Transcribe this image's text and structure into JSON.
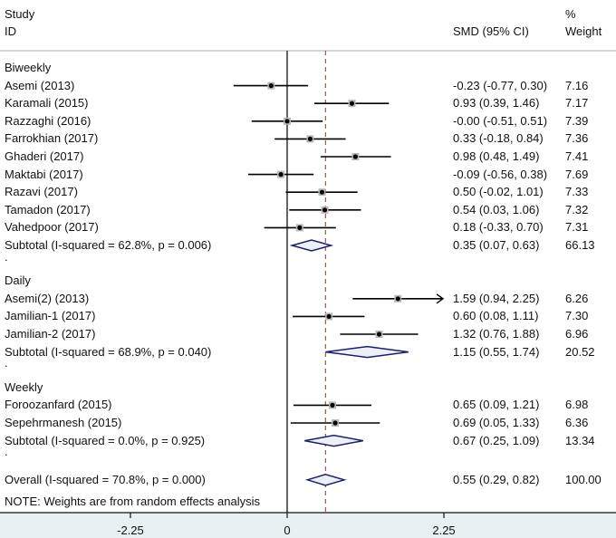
{
  "chart_data": {
    "type": "forest",
    "header": {
      "study": "Study",
      "id": "ID",
      "effect": "SMD (95% CI)",
      "weight_pct": "%",
      "weight": "Weight"
    },
    "null_line": 0,
    "overall_line": 0.55,
    "xlim": [
      -2.25,
      2.25
    ],
    "xticks": [
      {
        "value": -2.25,
        "label": "-2.25"
      },
      {
        "value": 0,
        "label": "0"
      },
      {
        "value": 2.25,
        "label": "2.25"
      }
    ],
    "rows": [
      {
        "kind": "group",
        "label": "Biweekly"
      },
      {
        "kind": "study",
        "label": "Asemi (2013)",
        "est": -0.23,
        "lo": -0.77,
        "hi": 0.3,
        "text": "-0.23 (-0.77, 0.30)",
        "weight": "7.16"
      },
      {
        "kind": "study",
        "label": "Karamali (2015)",
        "est": 0.93,
        "lo": 0.39,
        "hi": 1.46,
        "text": "0.93 (0.39, 1.46)",
        "weight": "7.17"
      },
      {
        "kind": "study",
        "label": "Razzaghi (2016)",
        "est": -0.0,
        "lo": -0.51,
        "hi": 0.51,
        "text": "-0.00 (-0.51, 0.51)",
        "weight": "7.39"
      },
      {
        "kind": "study",
        "label": "Farrokhian (2017)",
        "est": 0.33,
        "lo": -0.18,
        "hi": 0.84,
        "text": "0.33 (-0.18, 0.84)",
        "weight": "7.36"
      },
      {
        "kind": "study",
        "label": "Ghaderi (2017)",
        "est": 0.98,
        "lo": 0.48,
        "hi": 1.49,
        "text": "0.98 (0.48, 1.49)",
        "weight": "7.41"
      },
      {
        "kind": "study",
        "label": "Maktabi (2017)",
        "est": -0.09,
        "lo": -0.56,
        "hi": 0.38,
        "text": "-0.09 (-0.56, 0.38)",
        "weight": "7.69"
      },
      {
        "kind": "study",
        "label": "Razavi (2017)",
        "est": 0.5,
        "lo": -0.02,
        "hi": 1.01,
        "text": "0.50 (-0.02, 1.01)",
        "weight": "7.33"
      },
      {
        "kind": "study",
        "label": "Tamadon (2017)",
        "est": 0.54,
        "lo": 0.03,
        "hi": 1.06,
        "text": "0.54 (0.03, 1.06)",
        "weight": "7.32"
      },
      {
        "kind": "study",
        "label": "Vahedpoor (2017)",
        "est": 0.18,
        "lo": -0.33,
        "hi": 0.7,
        "text": "0.18 (-0.33, 0.70)",
        "weight": "7.31"
      },
      {
        "kind": "subtotal",
        "label": "Subtotal  (I-squared = 62.8%, p = 0.006)",
        "est": 0.35,
        "lo": 0.07,
        "hi": 0.63,
        "text": "0.35 (0.07, 0.63)",
        "weight": "66.13"
      },
      {
        "kind": "dot",
        "label": "."
      },
      {
        "kind": "group",
        "label": "Daily"
      },
      {
        "kind": "study",
        "label": "Asemi(2) (2013)",
        "est": 1.59,
        "lo": 0.94,
        "hi": 2.25,
        "text": "1.59 (0.94, 2.25)",
        "weight": "6.26",
        "arrow": true
      },
      {
        "kind": "study",
        "label": "Jamilian-1 (2017)",
        "est": 0.6,
        "lo": 0.08,
        "hi": 1.11,
        "text": "0.60 (0.08, 1.11)",
        "weight": "7.30"
      },
      {
        "kind": "study",
        "label": "Jamilian-2 (2017)",
        "est": 1.32,
        "lo": 0.76,
        "hi": 1.88,
        "text": "1.32 (0.76, 1.88)",
        "weight": "6.96"
      },
      {
        "kind": "subtotal",
        "label": "Subtotal  (I-squared = 68.9%, p = 0.040)",
        "est": 1.15,
        "lo": 0.55,
        "hi": 1.74,
        "text": "1.15 (0.55, 1.74)",
        "weight": "20.52"
      },
      {
        "kind": "dot",
        "label": "."
      },
      {
        "kind": "group",
        "label": "Weekly"
      },
      {
        "kind": "study",
        "label": "Foroozanfard (2015)",
        "est": 0.65,
        "lo": 0.09,
        "hi": 1.21,
        "text": "0.65 (0.09, 1.21)",
        "weight": "6.98"
      },
      {
        "kind": "study",
        "label": "Sepehrmanesh (2015)",
        "est": 0.69,
        "lo": 0.05,
        "hi": 1.33,
        "text": "0.69 (0.05, 1.33)",
        "weight": "6.36"
      },
      {
        "kind": "subtotal",
        "label": "Subtotal  (I-squared = 0.0%, p = 0.925)",
        "est": 0.67,
        "lo": 0.25,
        "hi": 1.09,
        "text": "0.67 (0.25, 1.09)",
        "weight": "13.34"
      },
      {
        "kind": "dot",
        "label": "."
      },
      {
        "kind": "overall",
        "label": "Overall  (I-squared = 70.8%, p = 0.000)",
        "est": 0.55,
        "lo": 0.29,
        "hi": 0.82,
        "text": "0.55 (0.29, 0.82)",
        "weight": "100.00"
      }
    ],
    "note": "NOTE: Weights are from random effects analysis",
    "colors": {
      "diamond": "#1a1f6e",
      "diamond_fill": "#eef0f8",
      "ref_line": "#8b3a2a",
      "ci": "#000000",
      "marker_box": "#b8b8b8"
    }
  }
}
